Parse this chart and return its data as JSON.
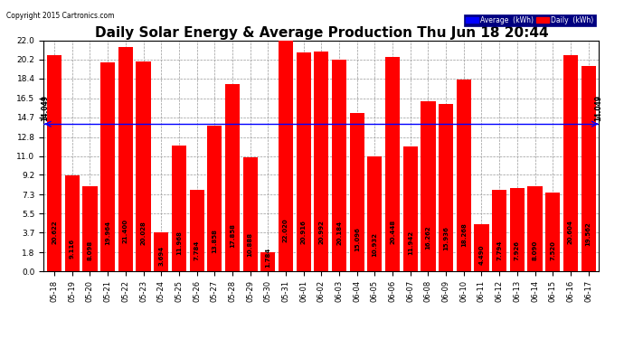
{
  "title": "Daily Solar Energy & Average Production Thu Jun 18 20:44",
  "copyright": "Copyright 2015 Cartronics.com",
  "categories": [
    "05-18",
    "05-19",
    "05-20",
    "05-21",
    "05-22",
    "05-23",
    "05-24",
    "05-25",
    "05-26",
    "05-27",
    "05-28",
    "05-29",
    "05-30",
    "05-31",
    "06-01",
    "06-02",
    "06-03",
    "06-04",
    "06-05",
    "06-06",
    "06-07",
    "06-08",
    "06-09",
    "06-10",
    "06-11",
    "06-12",
    "06-13",
    "06-14",
    "06-15",
    "06-16",
    "06-17"
  ],
  "values": [
    20.622,
    9.116,
    8.098,
    19.964,
    21.4,
    20.028,
    3.694,
    11.968,
    7.784,
    13.858,
    17.858,
    10.888,
    1.784,
    22.02,
    20.916,
    20.992,
    20.184,
    15.096,
    10.932,
    20.448,
    11.942,
    16.262,
    15.936,
    18.268,
    4.49,
    7.794,
    7.926,
    8.09,
    7.52,
    20.604,
    19.562
  ],
  "average": 14.049,
  "ylim": [
    0,
    22.0
  ],
  "yticks": [
    0.0,
    1.8,
    3.7,
    5.5,
    7.3,
    9.2,
    11.0,
    12.8,
    14.7,
    16.5,
    18.4,
    20.2,
    22.0
  ],
  "bar_color": "#ff0000",
  "avg_line_color": "#0000ff",
  "background_color": "#ffffff",
  "grid_color": "#999999",
  "title_fontsize": 11,
  "label_fontsize": 6,
  "value_fontsize": 5,
  "avg_label": "14.049"
}
